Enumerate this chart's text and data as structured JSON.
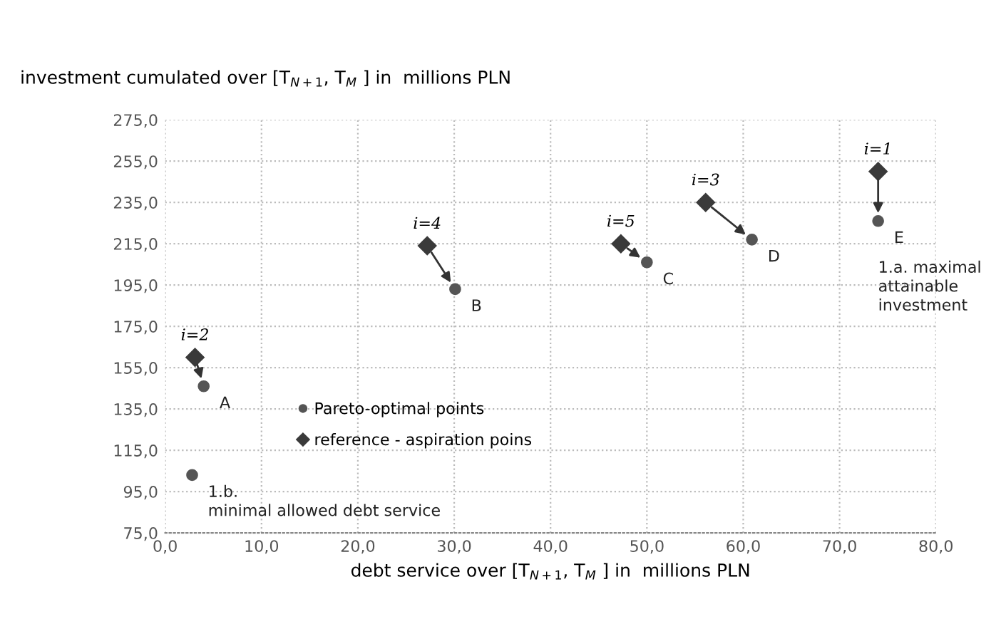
{
  "chart_data": {
    "type": "scatter",
    "xlabel": "debt service over [T$_{N+1}$, T$_{M}$ ] in  millions PLN",
    "ylabel": "investment cumulated over [T$_{N+1}$, T$_{M}$ ] in  millions PLN",
    "series": [
      {
        "name": "Pareto-optimal points",
        "color": "#555555",
        "marker": "circle",
        "x": [
          4.0,
          30.1,
          50.0,
          60.9,
          74.0,
          2.8
        ],
        "values": [
          146,
          193,
          206,
          217,
          226,
          103
        ]
      },
      {
        "name": "reference - aspiration poins",
        "color": "#3a3a3a",
        "marker": "diamond",
        "x": [
          3.1,
          27.2,
          47.3,
          56.1,
          74.0
        ],
        "values": [
          160,
          214,
          215,
          235,
          250
        ]
      }
    ],
    "xlim": [
      0,
      80
    ],
    "ylim": [
      75,
      275
    ],
    "xticks": [
      {
        "value": 0,
        "label": "0,0"
      },
      {
        "value": 10,
        "label": "10,0"
      },
      {
        "value": 20,
        "label": "20,0"
      },
      {
        "value": 30,
        "label": "30,0"
      },
      {
        "value": 40,
        "label": "40,0"
      },
      {
        "value": 50,
        "label": "50,0"
      },
      {
        "value": 60,
        "label": "60,0"
      },
      {
        "value": 70,
        "label": "70,0"
      },
      {
        "value": 80,
        "label": "80,0"
      }
    ],
    "yticks": [
      {
        "value": 75,
        "label": "75,0"
      },
      {
        "value": 95,
        "label": "95,0"
      },
      {
        "value": 115,
        "label": "115,0"
      },
      {
        "value": 135,
        "label": "135,0"
      },
      {
        "value": 155,
        "label": "155,0"
      },
      {
        "value": 175,
        "label": "175,0"
      },
      {
        "value": 195,
        "label": "195,0"
      },
      {
        "value": 215,
        "label": "215,0"
      },
      {
        "value": 235,
        "label": "235,0"
      },
      {
        "value": 255,
        "label": "255,0"
      },
      {
        "value": 275,
        "label": "275,0"
      }
    ],
    "grid": true,
    "legend": "bottom left",
    "annotations": [
      {
        "text": "A",
        "x": 4.0,
        "y": 146
      },
      {
        "text": "B",
        "x": 30.1,
        "y": 193
      },
      {
        "text": "C",
        "x": 50.0,
        "y": 206
      },
      {
        "text": "D",
        "x": 60.9,
        "y": 217
      },
      {
        "text": "E",
        "x": 74.0,
        "y": 226
      },
      {
        "text": "1.a. maximal\nattainable\ninvestment",
        "x": 74.0,
        "y": 226
      },
      {
        "text": "1.b.\nminimal allowed debt service",
        "x": 2.8,
        "y": 103
      },
      {
        "text": "i=2",
        "x": 3.1,
        "y": 160
      },
      {
        "text": "i=4",
        "x": 27.2,
        "y": 214
      },
      {
        "text": "i=5",
        "x": 47.3,
        "y": 215
      },
      {
        "text": "i=3",
        "x": 56.1,
        "y": 235
      },
      {
        "text": "i=1",
        "x": 74.0,
        "y": 250
      }
    ]
  }
}
